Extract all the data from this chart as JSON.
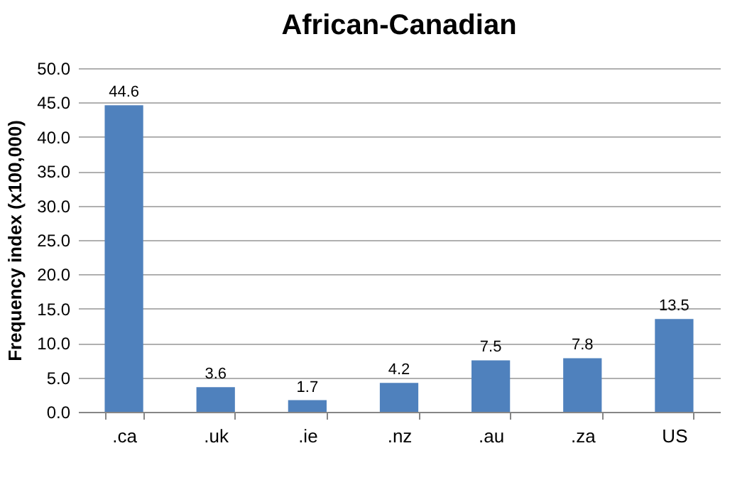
{
  "chart_data": {
    "type": "bar",
    "title": "African-Canadian",
    "ylabel": "Frequency index (x100,000)",
    "categories": [
      ".ca",
      ".uk",
      ".ie",
      ".nz",
      ".au",
      ".za",
      "US"
    ],
    "values": [
      44.6,
      3.6,
      1.7,
      4.2,
      7.5,
      7.8,
      13.5
    ],
    "color": "#4f81bd",
    "ylim": [
      0,
      50
    ],
    "yticks": [
      {
        "value": 0,
        "label": "0.0"
      },
      {
        "value": 5,
        "label": "5.0"
      },
      {
        "value": 10,
        "label": "10.0"
      },
      {
        "value": 15,
        "label": "15.0"
      },
      {
        "value": 20,
        "label": "20.0"
      },
      {
        "value": 25,
        "label": "25.0"
      },
      {
        "value": 30,
        "label": "30.0"
      },
      {
        "value": 35,
        "label": "35.0"
      },
      {
        "value": 40,
        "label": "40.0"
      },
      {
        "value": 45,
        "label": "45.0"
      },
      {
        "value": 50,
        "label": "50.0"
      }
    ],
    "grid": "y",
    "data_labels": true
  }
}
